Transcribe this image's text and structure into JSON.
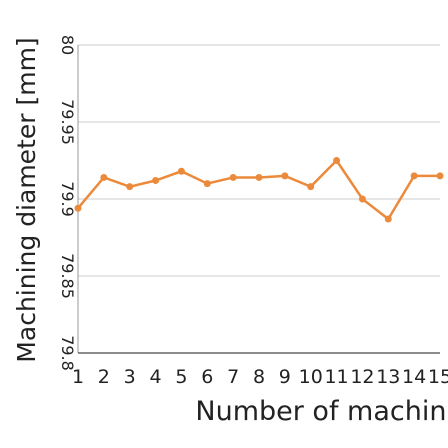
{
  "chart_data": {
    "type": "line",
    "x_label": "Number of machining holes",
    "y_label": "Machining diameter [mm]",
    "categories": [
      "1",
      "2",
      "3",
      "4",
      "5",
      "6",
      "7",
      "8",
      "9",
      "10",
      "11",
      "12",
      "13",
      "14",
      "15"
    ],
    "series": [
      {
        "name": "Machining diameter",
        "color": "#ec8a3c",
        "values": [
          79.894,
          79.914,
          79.908,
          79.912,
          79.918,
          79.91,
          79.914,
          79.914,
          79.915,
          79.908,
          79.925,
          79.9,
          79.887,
          79.915,
          79.915
        ]
      }
    ],
    "ylim": [
      79.8,
      80
    ],
    "yticks": [
      79.8,
      79.85,
      79.9,
      79.95,
      80
    ],
    "grid": true
  }
}
